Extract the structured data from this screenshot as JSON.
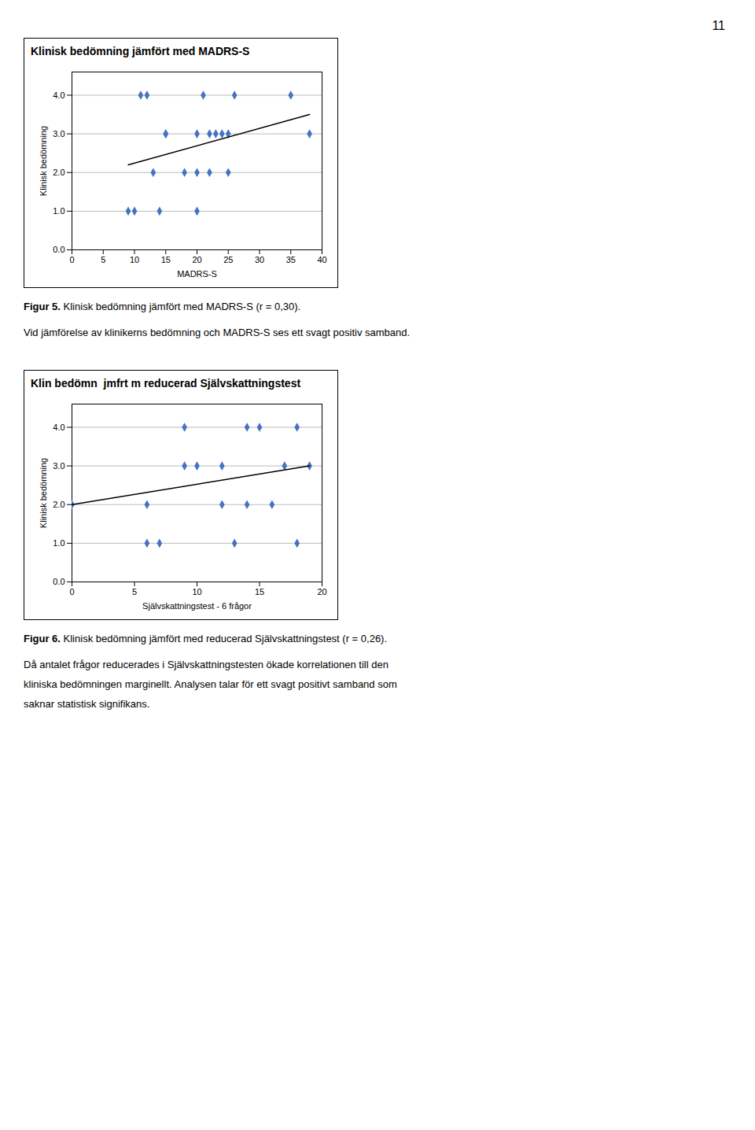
{
  "annotations": [
    "11"
  ],
  "chart_data": [
    {
      "type": "scatter",
      "title": "Klinisk bedömning jämfört med MADRS-S",
      "xlabel": "MADRS-S",
      "ylabel": "Klinisk bedömning",
      "x": [
        9,
        10,
        11,
        12,
        14,
        15,
        18,
        20,
        21,
        20,
        22,
        23,
        24,
        25,
        25,
        26,
        35,
        38,
        13,
        15,
        20,
        22
      ],
      "values": [
        1,
        1,
        4,
        4,
        1,
        3,
        2,
        1,
        4,
        3,
        3,
        3,
        3,
        3,
        2,
        4,
        4,
        3,
        2,
        3,
        2,
        2
      ],
      "color": "#4472C4",
      "marker": "diamond",
      "trend_line": {
        "x": [
          9,
          38
        ],
        "values": [
          2.2,
          3.5
        ],
        "color": "#000000"
      },
      "xlim": [
        0,
        40
      ],
      "ylim": [
        0,
        4.6
      ],
      "xticks": [
        0,
        5,
        10,
        15,
        20,
        25,
        30,
        35,
        40
      ],
      "yticks": [
        0,
        1,
        2,
        3,
        4
      ],
      "grid": "y",
      "annotations": [
        "Figur 5. Klinisk bedömning jämfört med MADRS-S (r = 0,30).",
        "Vid jämförelse av klinikerns bedömning och MADRS-S ses ett svagt positiv samband."
      ]
    },
    {
      "type": "scatter",
      "title": "Klin bedömn  jmfrt m reducerad Självskattningstest",
      "xlabel": "Självskattningstest - 6 frågor",
      "ylabel": "Klinisk bedömning",
      "x": [
        0,
        6,
        6,
        7,
        9,
        9,
        10,
        12,
        12,
        13,
        14,
        14,
        15,
        16,
        17,
        18,
        18,
        19
      ],
      "values": [
        2,
        2,
        1,
        1,
        4,
        3,
        3,
        3,
        2,
        1,
        4,
        2,
        4,
        2,
        3,
        4,
        1,
        3
      ],
      "color": "#4472C4",
      "marker": "diamond",
      "trend_line": {
        "x": [
          0,
          19
        ],
        "values": [
          2.0,
          3.0
        ],
        "color": "#000000"
      },
      "xlim": [
        0,
        20
      ],
      "ylim": [
        0,
        4.6
      ],
      "xticks": [
        0,
        5,
        10,
        15,
        20
      ],
      "yticks": [
        0,
        1,
        2,
        3,
        4
      ],
      "grid": "y",
      "annotations": [
        "Figur 6. Klinisk bedömning jämfört med reducerad Självskattningstest (r = 0,26).",
        "Då antalet frågor reducerades i Självskattningstesten ökade korrelationen till den",
        "kliniska bedömningen marginellt. Analysen talar för ett svagt positivt samband som",
        "saknar statistisk signifikans."
      ]
    }
  ]
}
